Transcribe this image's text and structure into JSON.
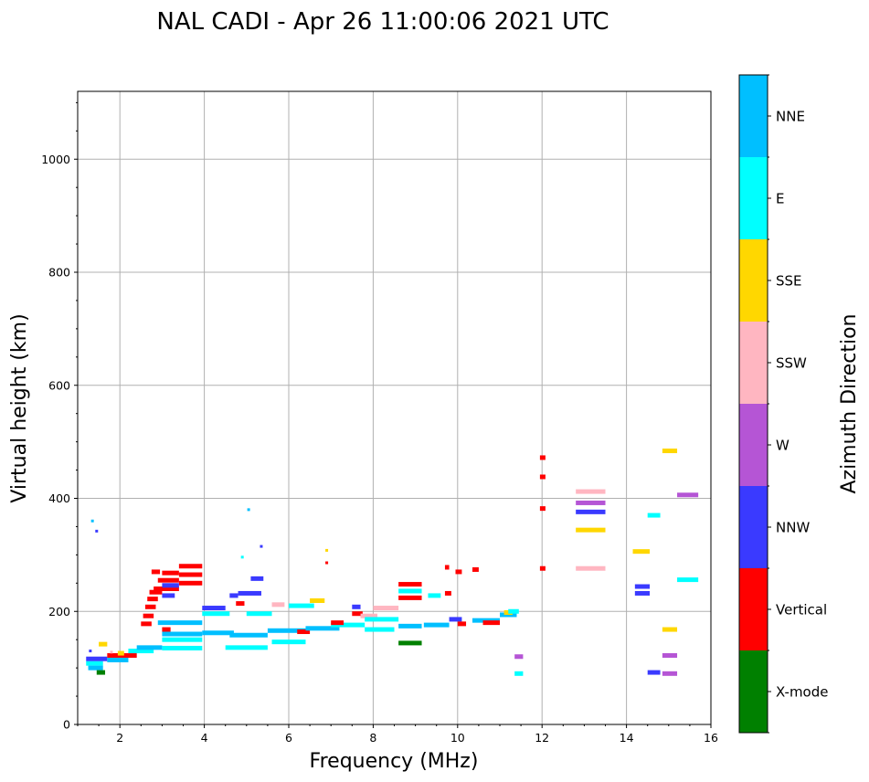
{
  "chart_data": {
    "type": "scatter",
    "title": "NAL CADI - Apr 26 11:00:06 2021 UTC",
    "xlabel": "Frequency (MHz)",
    "ylabel": "Virtual height (km)",
    "xlim": [
      1,
      16
    ],
    "ylim": [
      0,
      1120
    ],
    "xticks": [
      2,
      4,
      6,
      8,
      10,
      12,
      14,
      16
    ],
    "yticks": [
      0,
      200,
      400,
      600,
      800,
      1000
    ],
    "grid": true,
    "colorbar": {
      "label": "Azimuth Direction",
      "categories": [
        {
          "name": "X-mode",
          "color": "#008000"
        },
        {
          "name": "Vertical",
          "color": "#ff0000"
        },
        {
          "name": "NNW",
          "color": "#3a3aff"
        },
        {
          "name": "W",
          "color": "#b555d5"
        },
        {
          "name": "SSW",
          "color": "#ffb6c1"
        },
        {
          "name": "SSE",
          "color": "#ffd700"
        },
        {
          "name": "E",
          "color": "#00ffff"
        },
        {
          "name": "NNE",
          "color": "#00bfff"
        }
      ]
    },
    "segments": [
      {
        "dir": "E",
        "x0": 1.2,
        "x1": 1.6,
        "y": 108
      },
      {
        "dir": "NNW",
        "x0": 1.2,
        "x1": 1.7,
        "y": 116
      },
      {
        "dir": "NNE",
        "x0": 1.25,
        "x1": 1.6,
        "y": 100
      },
      {
        "dir": "X-mode",
        "x0": 1.45,
        "x1": 1.65,
        "y": 92
      },
      {
        "dir": "SSE",
        "x0": 1.5,
        "x1": 1.7,
        "y": 142
      },
      {
        "dir": "Vertical",
        "x0": 1.7,
        "x1": 2.4,
        "y": 122
      },
      {
        "dir": "NNE",
        "x0": 1.7,
        "x1": 2.2,
        "y": 114
      },
      {
        "dir": "SSE",
        "x0": 1.95,
        "x1": 2.1,
        "y": 126
      },
      {
        "dir": "E",
        "x0": 2.2,
        "x1": 2.8,
        "y": 130
      },
      {
        "dir": "NNE",
        "x0": 2.4,
        "x1": 3.0,
        "y": 136
      },
      {
        "dir": "Vertical",
        "x0": 2.5,
        "x1": 2.75,
        "y": 178
      },
      {
        "dir": "Vertical",
        "x0": 2.55,
        "x1": 2.8,
        "y": 192
      },
      {
        "dir": "Vertical",
        "x0": 2.6,
        "x1": 2.85,
        "y": 208
      },
      {
        "dir": "Vertical",
        "x0": 2.65,
        "x1": 2.9,
        "y": 222
      },
      {
        "dir": "Vertical",
        "x0": 2.7,
        "x1": 3.0,
        "y": 234
      },
      {
        "dir": "Vertical",
        "x0": 2.75,
        "x1": 2.95,
        "y": 270
      },
      {
        "dir": "Vertical",
        "x0": 2.8,
        "x1": 3.4,
        "y": 240
      },
      {
        "dir": "Vertical",
        "x0": 2.9,
        "x1": 3.4,
        "y": 255
      },
      {
        "dir": "Vertical",
        "x0": 3.0,
        "x1": 3.4,
        "y": 268
      },
      {
        "dir": "Vertical",
        "x0": 3.4,
        "x1": 3.95,
        "y": 250
      },
      {
        "dir": "Vertical",
        "x0": 3.4,
        "x1": 3.95,
        "y": 265
      },
      {
        "dir": "Vertical",
        "x0": 3.4,
        "x1": 3.95,
        "y": 280
      },
      {
        "dir": "NNW",
        "x0": 3.0,
        "x1": 3.4,
        "y": 246
      },
      {
        "dir": "NNW",
        "x0": 3.0,
        "x1": 3.3,
        "y": 228
      },
      {
        "dir": "Vertical",
        "x0": 3.0,
        "x1": 3.2,
        "y": 168
      },
      {
        "dir": "E",
        "x0": 3.0,
        "x1": 3.95,
        "y": 135
      },
      {
        "dir": "E",
        "x0": 3.0,
        "x1": 3.95,
        "y": 150
      },
      {
        "dir": "NNE",
        "x0": 3.0,
        "x1": 3.95,
        "y": 160
      },
      {
        "dir": "NNE",
        "x0": 2.9,
        "x1": 3.95,
        "y": 180
      },
      {
        "dir": "NNW",
        "x0": 3.95,
        "x1": 4.5,
        "y": 206
      },
      {
        "dir": "E",
        "x0": 3.95,
        "x1": 4.6,
        "y": 196
      },
      {
        "dir": "NNE",
        "x0": 3.95,
        "x1": 4.7,
        "y": 162
      },
      {
        "dir": "NNW",
        "x0": 4.8,
        "x1": 5.35,
        "y": 232
      },
      {
        "dir": "NNW",
        "x0": 5.1,
        "x1": 5.4,
        "y": 258
      },
      {
        "dir": "NNW",
        "x0": 4.6,
        "x1": 4.8,
        "y": 228
      },
      {
        "dir": "Vertical",
        "x0": 4.75,
        "x1": 4.95,
        "y": 214
      },
      {
        "dir": "E",
        "x0": 4.5,
        "x1": 5.5,
        "y": 136
      },
      {
        "dir": "NNE",
        "x0": 4.6,
        "x1": 5.5,
        "y": 158
      },
      {
        "dir": "E",
        "x0": 5.0,
        "x1": 5.6,
        "y": 196
      },
      {
        "dir": "NNE",
        "x0": 5.5,
        "x1": 6.4,
        "y": 166
      },
      {
        "dir": "E",
        "x0": 5.6,
        "x1": 6.4,
        "y": 146
      },
      {
        "dir": "SSW",
        "x0": 5.6,
        "x1": 5.9,
        "y": 212
      },
      {
        "dir": "E",
        "x0": 6.0,
        "x1": 6.6,
        "y": 210
      },
      {
        "dir": "Vertical",
        "x0": 6.2,
        "x1": 6.5,
        "y": 164
      },
      {
        "dir": "SSE",
        "x0": 6.5,
        "x1": 6.85,
        "y": 219
      },
      {
        "dir": "NNE",
        "x0": 6.4,
        "x1": 7.2,
        "y": 170
      },
      {
        "dir": "E",
        "x0": 7.0,
        "x1": 7.8,
        "y": 176
      },
      {
        "dir": "Vertical",
        "x0": 7.0,
        "x1": 7.3,
        "y": 180
      },
      {
        "dir": "NNW",
        "x0": 7.5,
        "x1": 7.7,
        "y": 208
      },
      {
        "dir": "Vertical",
        "x0": 7.5,
        "x1": 7.75,
        "y": 196
      },
      {
        "dir": "SSW",
        "x0": 7.7,
        "x1": 8.1,
        "y": 192
      },
      {
        "dir": "E",
        "x0": 7.8,
        "x1": 8.6,
        "y": 186
      },
      {
        "dir": "SSW",
        "x0": 8.0,
        "x1": 8.6,
        "y": 206
      },
      {
        "dir": "E",
        "x0": 7.8,
        "x1": 8.5,
        "y": 168
      },
      {
        "dir": "Vertical",
        "x0": 8.6,
        "x1": 9.15,
        "y": 248
      },
      {
        "dir": "Vertical",
        "x0": 8.6,
        "x1": 9.15,
        "y": 224
      },
      {
        "dir": "E",
        "x0": 8.6,
        "x1": 9.15,
        "y": 236
      },
      {
        "dir": "NNE",
        "x0": 8.6,
        "x1": 9.15,
        "y": 174
      },
      {
        "dir": "X-mode",
        "x0": 8.6,
        "x1": 9.15,
        "y": 144
      },
      {
        "dir": "E",
        "x0": 9.3,
        "x1": 9.6,
        "y": 228
      },
      {
        "dir": "Vertical",
        "x0": 9.7,
        "x1": 9.85,
        "y": 232
      },
      {
        "dir": "Vertical",
        "x0": 9.7,
        "x1": 9.8,
        "y": 278
      },
      {
        "dir": "Vertical",
        "x0": 9.95,
        "x1": 10.1,
        "y": 270
      },
      {
        "dir": "NNE",
        "x0": 9.2,
        "x1": 9.8,
        "y": 176
      },
      {
        "dir": "NNW",
        "x0": 9.8,
        "x1": 10.1,
        "y": 186
      },
      {
        "dir": "Vertical",
        "x0": 10.0,
        "x1": 10.2,
        "y": 178
      },
      {
        "dir": "Vertical",
        "x0": 10.35,
        "x1": 10.5,
        "y": 274
      },
      {
        "dir": "NNE",
        "x0": 10.35,
        "x1": 11.0,
        "y": 184
      },
      {
        "dir": "Vertical",
        "x0": 10.6,
        "x1": 11.0,
        "y": 180
      },
      {
        "dir": "NNE",
        "x0": 11.0,
        "x1": 11.4,
        "y": 194
      },
      {
        "dir": "SSE",
        "x0": 11.1,
        "x1": 11.3,
        "y": 198
      },
      {
        "dir": "E",
        "x0": 11.2,
        "x1": 11.45,
        "y": 200
      },
      {
        "dir": "W",
        "x0": 11.35,
        "x1": 11.55,
        "y": 120
      },
      {
        "dir": "E",
        "x0": 11.35,
        "x1": 11.55,
        "y": 90
      },
      {
        "dir": "Vertical",
        "x0": 11.95,
        "x1": 12.08,
        "y": 472
      },
      {
        "dir": "Vertical",
        "x0": 11.95,
        "x1": 12.08,
        "y": 438
      },
      {
        "dir": "Vertical",
        "x0": 11.95,
        "x1": 12.08,
        "y": 382
      },
      {
        "dir": "Vertical",
        "x0": 11.95,
        "x1": 12.08,
        "y": 276
      },
      {
        "dir": "SSW",
        "x0": 12.8,
        "x1": 13.5,
        "y": 412
      },
      {
        "dir": "W",
        "x0": 12.8,
        "x1": 13.5,
        "y": 392
      },
      {
        "dir": "NNW",
        "x0": 12.8,
        "x1": 13.5,
        "y": 376
      },
      {
        "dir": "SSE",
        "x0": 12.8,
        "x1": 13.5,
        "y": 344
      },
      {
        "dir": "SSW",
        "x0": 12.8,
        "x1": 13.5,
        "y": 276
      },
      {
        "dir": "SSE",
        "x0": 14.15,
        "x1": 14.55,
        "y": 306
      },
      {
        "dir": "NNW",
        "x0": 14.2,
        "x1": 14.55,
        "y": 244
      },
      {
        "dir": "NNW",
        "x0": 14.2,
        "x1": 14.55,
        "y": 232
      },
      {
        "dir": "E",
        "x0": 14.5,
        "x1": 14.8,
        "y": 370
      },
      {
        "dir": "NNW",
        "x0": 14.5,
        "x1": 14.8,
        "y": 92
      },
      {
        "dir": "SSE",
        "x0": 14.85,
        "x1": 15.2,
        "y": 484
      },
      {
        "dir": "SSE",
        "x0": 14.85,
        "x1": 15.2,
        "y": 168
      },
      {
        "dir": "W",
        "x0": 14.85,
        "x1": 15.2,
        "y": 122
      },
      {
        "dir": "W",
        "x0": 14.85,
        "x1": 15.2,
        "y": 90
      },
      {
        "dir": "W",
        "x0": 15.2,
        "x1": 15.7,
        "y": 406
      },
      {
        "dir": "E",
        "x0": 15.2,
        "x1": 15.7,
        "y": 256
      }
    ],
    "points": [
      {
        "dir": "NNE",
        "x": 1.35,
        "y": 360
      },
      {
        "dir": "NNW",
        "x": 1.45,
        "y": 342
      },
      {
        "dir": "NNE",
        "x": 5.05,
        "y": 380
      },
      {
        "dir": "NNW",
        "x": 5.35,
        "y": 315
      },
      {
        "dir": "SSE",
        "x": 6.9,
        "y": 308
      },
      {
        "dir": "Vertical",
        "x": 6.9,
        "y": 286
      },
      {
        "dir": "E",
        "x": 4.9,
        "y": 296
      },
      {
        "dir": "NNW",
        "x": 1.3,
        "y": 130
      },
      {
        "dir": "SSW",
        "x": 1.8,
        "y": 128
      }
    ]
  }
}
